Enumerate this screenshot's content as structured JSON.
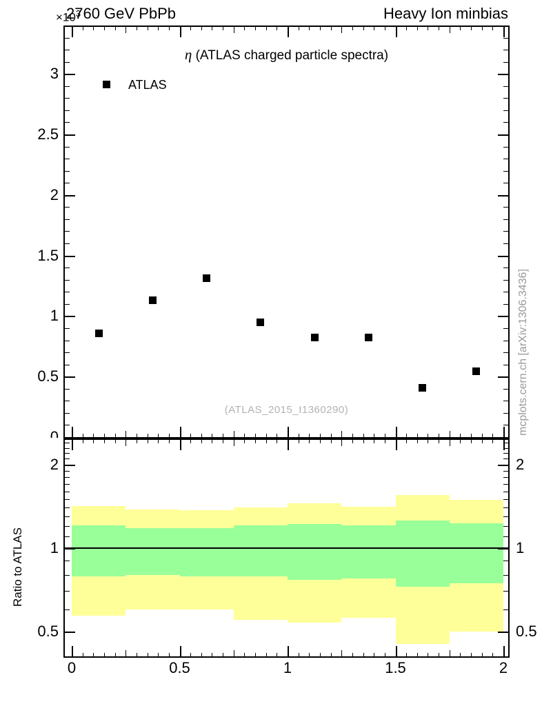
{
  "header": {
    "left": "2760 GeV PbPb",
    "right": "Heavy Ion minbias",
    "y_exponent_base": "×10",
    "y_exponent": "3"
  },
  "main_plot": {
    "title_symbol": "η",
    "title_text": " (ATLAS charged particle spectra)",
    "legend": {
      "label": "ATLAS",
      "marker": "filled-square-icon",
      "color": "#000000"
    },
    "watermark": "(ATLAS_2015_I1360290)",
    "yticks": [
      {
        "v": 0,
        "t": "0"
      },
      {
        "v": 0.5,
        "t": "0.5"
      },
      {
        "v": 1,
        "t": "1"
      },
      {
        "v": 1.5,
        "t": "1.5"
      },
      {
        "v": 2,
        "t": "2"
      },
      {
        "v": 2.5,
        "t": "2.5"
      },
      {
        "v": 3,
        "t": "3"
      }
    ],
    "xticks": [
      {
        "v": 0,
        "t": "0"
      },
      {
        "v": 0.5,
        "t": "0.5"
      },
      {
        "v": 1,
        "t": "1"
      },
      {
        "v": 1.5,
        "t": "1.5"
      },
      {
        "v": 2,
        "t": "2"
      }
    ]
  },
  "ratio_plot": {
    "ylabel": "Ratio to ATLAS",
    "yticks": [
      {
        "v": 0.5,
        "t": "0.5"
      },
      {
        "v": 1,
        "t": "1"
      },
      {
        "v": 2,
        "t": "2"
      }
    ]
  },
  "side_caption": "mcplots.cern.ch [arXiv:1306.3436]",
  "colors": {
    "outer_band": "#ffff99",
    "inner_band": "#99ff99",
    "marker": "#000000",
    "gray_text": "#999999"
  },
  "chart_data": [
    {
      "type": "scatter",
      "title": "η (ATLAS charged particle spectra)",
      "xlabel": "",
      "ylabel": "",
      "y_multiplier": "×10³",
      "xlim": [
        0,
        2
      ],
      "ylim": [
        0,
        3.4
      ],
      "grid": false,
      "legend_position": "top-left-inside",
      "series": [
        {
          "name": "ATLAS",
          "marker": "filled-square",
          "color": "#000000",
          "x": [
            0.125,
            0.375,
            0.625,
            0.875,
            1.125,
            1.375,
            1.625,
            1.875
          ],
          "y": [
            0.855,
            1.13,
            1.31,
            0.95,
            0.825,
            0.825,
            0.405,
            0.545
          ]
        }
      ]
    },
    {
      "type": "band-steps",
      "title": "Ratio to ATLAS",
      "xlabel": "",
      "ylabel": "Ratio to ATLAS",
      "yscale": "log",
      "xlim": [
        0,
        2
      ],
      "ylim": [
        0.405,
        2.47
      ],
      "reference_line_y": 1,
      "bin_edges": [
        0,
        0.25,
        0.5,
        0.75,
        1.0,
        1.25,
        1.5,
        1.75,
        2.0
      ],
      "bands": [
        {
          "name": "outer-uncertainty",
          "color": "#ffff99",
          "lo": [
            0.57,
            0.6,
            0.6,
            0.55,
            0.54,
            0.56,
            0.45,
            0.5
          ],
          "hi": [
            1.42,
            1.38,
            1.37,
            1.4,
            1.45,
            1.41,
            1.55,
            1.49
          ]
        },
        {
          "name": "inner-uncertainty",
          "color": "#99ff99",
          "lo": [
            0.79,
            0.8,
            0.79,
            0.79,
            0.77,
            0.775,
            0.725,
            0.745
          ],
          "hi": [
            1.21,
            1.18,
            1.18,
            1.21,
            1.22,
            1.21,
            1.26,
            1.23
          ]
        }
      ]
    }
  ]
}
